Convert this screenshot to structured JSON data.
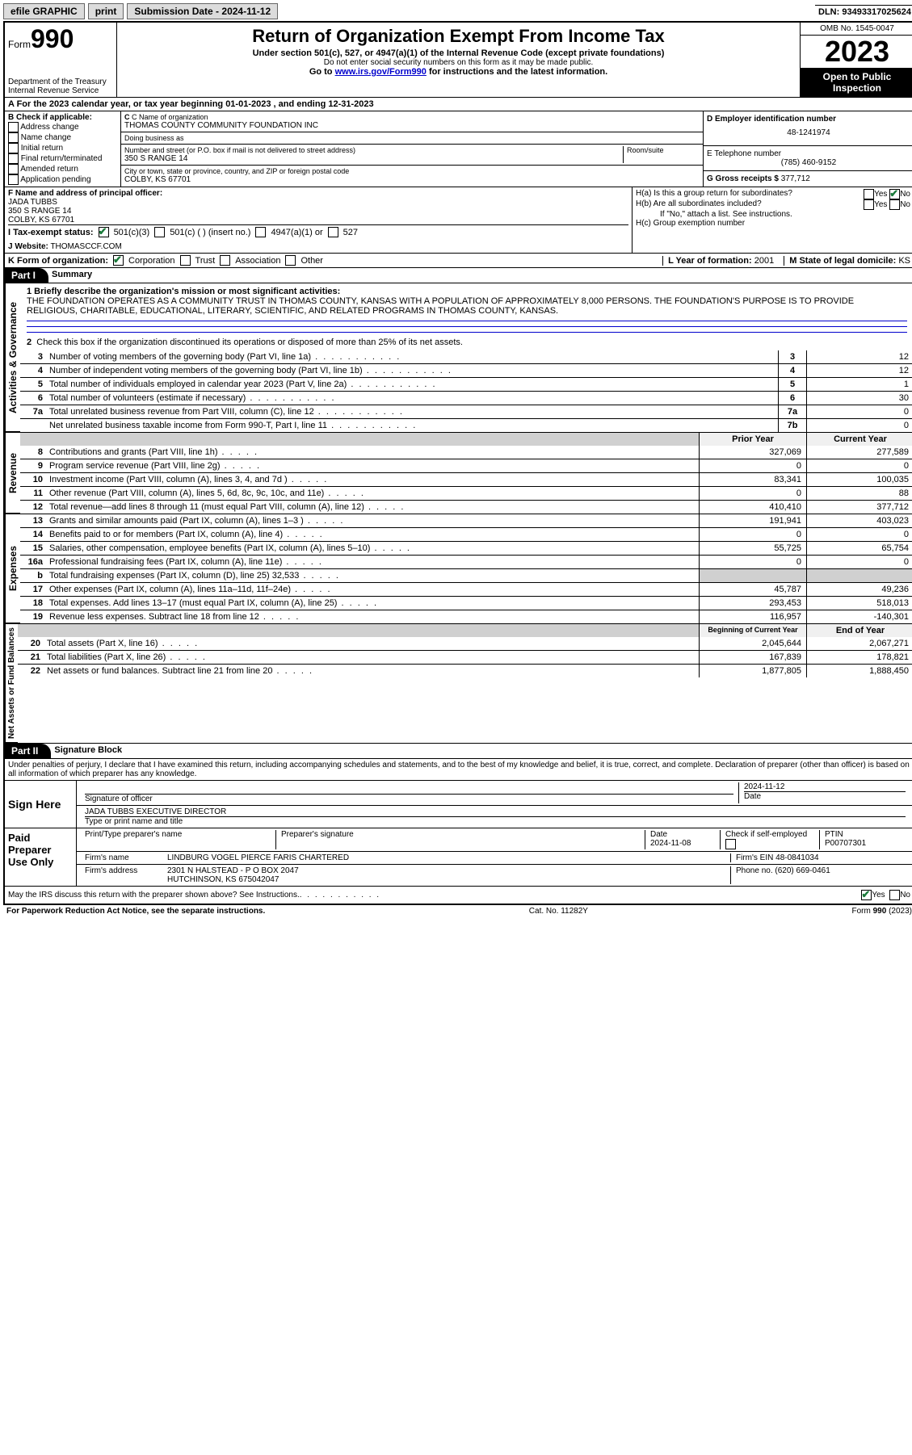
{
  "topbar": {
    "efile": "efile GRAPHIC",
    "print": "print",
    "submission_label": "Submission Date -",
    "submission_date": "2024-11-12",
    "dln_label": "DLN:",
    "dln": "93493317025624"
  },
  "header": {
    "form_word": "Form",
    "form_num": "990",
    "dept": "Department of the Treasury",
    "irs": "Internal Revenue Service",
    "title": "Return of Organization Exempt From Income Tax",
    "sub1": "Under section 501(c), 527, or 4947(a)(1) of the Internal Revenue Code (except private foundations)",
    "sub2": "Do not enter social security numbers on this form as it may be made public.",
    "sub3_pre": "Go to ",
    "sub3_link": "www.irs.gov/Form990",
    "sub3_post": " for instructions and the latest information.",
    "omb": "OMB No. 1545-0047",
    "year": "2023",
    "open": "Open to Public Inspection"
  },
  "rowA": "A For the 2023 calendar year, or tax year beginning 01-01-2023  , and ending 12-31-2023",
  "sectionB": {
    "label": "B Check if applicable:",
    "opts": [
      "Address change",
      "Name change",
      "Initial return",
      "Final return/terminated",
      "Amended return",
      "Application pending"
    ]
  },
  "sectionC": {
    "name_lbl": "C Name of organization",
    "name": "THOMAS COUNTY COMMUNITY FOUNDATION INC",
    "dba_lbl": "Doing business as",
    "dba": "",
    "addr_lbl": "Number and street (or P.O. box if mail is not delivered to street address)",
    "room_lbl": "Room/suite",
    "addr": "350 S RANGE 14",
    "city_lbl": "City or town, state or province, country, and ZIP or foreign postal code",
    "city": "COLBY, KS  67701"
  },
  "sectionD": {
    "ein_lbl": "D Employer identification number",
    "ein": "48-1241974",
    "phone_lbl": "E Telephone number",
    "phone": "(785) 460-9152",
    "gross_lbl": "G Gross receipts $",
    "gross": "377,712"
  },
  "sectionF": {
    "lbl": "F Name and address of principal officer:",
    "name": "JADA TUBBS",
    "addr1": "350 S RANGE 14",
    "addr2": "COLBY, KS  67701"
  },
  "sectionH": {
    "ha": "H(a)  Is this a group return for subordinates?",
    "hb": "H(b)  Are all subordinates included?",
    "hb_note": "If \"No,\" attach a list. See instructions.",
    "hc": "H(c)  Group exemption number",
    "yes": "Yes",
    "no": "No"
  },
  "rowI": {
    "lbl": "I   Tax-exempt status:",
    "o1": "501(c)(3)",
    "o2": "501(c) (  ) (insert no.)",
    "o3": "4947(a)(1) or",
    "o4": "527"
  },
  "rowJ": {
    "lbl": "J   Website:",
    "val": "THOMASCCF.COM"
  },
  "rowK": {
    "lbl": "K Form of organization:",
    "o1": "Corporation",
    "o2": "Trust",
    "o3": "Association",
    "o4": "Other",
    "L_lbl": "L Year of formation:",
    "L_val": "2001",
    "M_lbl": "M State of legal domicile:",
    "M_val": "KS"
  },
  "part1": {
    "hdr": "Part I",
    "title": "Summary",
    "vlab_gov": "Activities & Governance",
    "vlab_rev": "Revenue",
    "vlab_exp": "Expenses",
    "vlab_net": "Net Assets or Fund Balances",
    "q1_lbl": "1  Briefly describe the organization's mission or most significant activities:",
    "q1_text": "THE FOUNDATION OPERATES AS A COMMUNITY TRUST IN THOMAS COUNTY, KANSAS WITH A POPULATION OF APPROXIMATELY 8,000 PERSONS. THE FOUNDATION'S PURPOSE IS TO PROVIDE RELIGIOUS, CHARITABLE, EDUCATIONAL, LITERARY, SCIENTIFIC, AND RELATED PROGRAMS IN THOMAS COUNTY, KANSAS.",
    "q2": "Check this box      if the organization discontinued its operations or disposed of more than 25% of its net assets.",
    "rows_gov": [
      {
        "n": "3",
        "d": "Number of voting members of the governing body (Part VI, line 1a)",
        "b": "3",
        "v": "12"
      },
      {
        "n": "4",
        "d": "Number of independent voting members of the governing body (Part VI, line 1b)",
        "b": "4",
        "v": "12"
      },
      {
        "n": "5",
        "d": "Total number of individuals employed in calendar year 2023 (Part V, line 2a)",
        "b": "5",
        "v": "1"
      },
      {
        "n": "6",
        "d": "Total number of volunteers (estimate if necessary)",
        "b": "6",
        "v": "30"
      },
      {
        "n": "7a",
        "d": "Total unrelated business revenue from Part VIII, column (C), line 12",
        "b": "7a",
        "v": "0"
      },
      {
        "n": "",
        "d": "Net unrelated business taxable income from Form 990-T, Part I, line 11",
        "b": "7b",
        "v": "0"
      }
    ],
    "prior_hdr": "Prior Year",
    "curr_hdr": "Current Year",
    "rows_rev": [
      {
        "n": "8",
        "d": "Contributions and grants (Part VIII, line 1h)",
        "py": "327,069",
        "cy": "277,589"
      },
      {
        "n": "9",
        "d": "Program service revenue (Part VIII, line 2g)",
        "py": "0",
        "cy": "0"
      },
      {
        "n": "10",
        "d": "Investment income (Part VIII, column (A), lines 3, 4, and 7d )",
        "py": "83,341",
        "cy": "100,035"
      },
      {
        "n": "11",
        "d": "Other revenue (Part VIII, column (A), lines 5, 6d, 8c, 9c, 10c, and 11e)",
        "py": "0",
        "cy": "88"
      },
      {
        "n": "12",
        "d": "Total revenue—add lines 8 through 11 (must equal Part VIII, column (A), line 12)",
        "py": "410,410",
        "cy": "377,712"
      }
    ],
    "rows_exp": [
      {
        "n": "13",
        "d": "Grants and similar amounts paid (Part IX, column (A), lines 1–3 )",
        "py": "191,941",
        "cy": "403,023"
      },
      {
        "n": "14",
        "d": "Benefits paid to or for members (Part IX, column (A), line 4)",
        "py": "0",
        "cy": "0"
      },
      {
        "n": "15",
        "d": "Salaries, other compensation, employee benefits (Part IX, column (A), lines 5–10)",
        "py": "55,725",
        "cy": "65,754"
      },
      {
        "n": "16a",
        "d": "Professional fundraising fees (Part IX, column (A), line 11e)",
        "py": "0",
        "cy": "0"
      },
      {
        "n": "b",
        "d": "Total fundraising expenses (Part IX, column (D), line 25) 32,533",
        "py": "",
        "cy": "",
        "shade": true
      },
      {
        "n": "17",
        "d": "Other expenses (Part IX, column (A), lines 11a–11d, 11f–24e)",
        "py": "45,787",
        "cy": "49,236"
      },
      {
        "n": "18",
        "d": "Total expenses. Add lines 13–17 (must equal Part IX, column (A), line 25)",
        "py": "293,453",
        "cy": "518,013"
      },
      {
        "n": "19",
        "d": "Revenue less expenses. Subtract line 18 from line 12",
        "py": "116,957",
        "cy": "-140,301"
      }
    ],
    "boy_hdr": "Beginning of Current Year",
    "eoy_hdr": "End of Year",
    "rows_net": [
      {
        "n": "20",
        "d": "Total assets (Part X, line 16)",
        "py": "2,045,644",
        "cy": "2,067,271"
      },
      {
        "n": "21",
        "d": "Total liabilities (Part X, line 26)",
        "py": "167,839",
        "cy": "178,821"
      },
      {
        "n": "22",
        "d": "Net assets or fund balances. Subtract line 21 from line 20",
        "py": "1,877,805",
        "cy": "1,888,450"
      }
    ]
  },
  "part2": {
    "hdr": "Part II",
    "title": "Signature Block",
    "penalty": "Under penalties of perjury, I declare that I have examined this return, including accompanying schedules and statements, and to the best of my knowledge and belief, it is true, correct, and complete. Declaration of preparer (other than officer) is based on all information of which preparer has any knowledge.",
    "sign_here": "Sign Here",
    "sig_officer": "Signature of officer",
    "officer_name": "JADA TUBBS EXECUTIVE DIRECTOR",
    "type_name": "Type or print name and title",
    "date_lbl": "Date",
    "sig_date": "2024-11-12",
    "paid": "Paid Preparer Use Only",
    "prep_name_lbl": "Print/Type preparer's name",
    "prep_name": "",
    "prep_sig_lbl": "Preparer's signature",
    "prep_date_lbl": "Date",
    "prep_date": "2024-11-08",
    "check_self": "Check         if self-employed",
    "ptin_lbl": "PTIN",
    "ptin": "P00707301",
    "firm_name_lbl": "Firm's name",
    "firm_name": "LINDBURG VOGEL PIERCE FARIS CHARTERED",
    "firm_ein_lbl": "Firm's EIN",
    "firm_ein": "48-0841034",
    "firm_addr_lbl": "Firm's address",
    "firm_addr": "2301 N HALSTEAD - P O BOX 2047",
    "firm_city": "HUTCHINSON, KS  675042047",
    "phone_lbl": "Phone no.",
    "phone": "(620) 669-0461",
    "discuss": "May the IRS discuss this return with the preparer shown above? See Instructions.",
    "yes": "Yes",
    "no": "No"
  },
  "footer": {
    "left": "For Paperwork Reduction Act Notice, see the separate instructions.",
    "mid": "Cat. No. 11282Y",
    "right": "Form 990 (2023)"
  }
}
